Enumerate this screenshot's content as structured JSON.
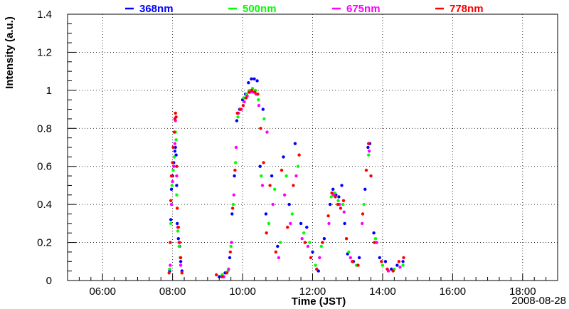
{
  "chart_data": {
    "type": "scatter",
    "xlabel": "Time (JST)",
    "ylabel": "Intensity (a.u.)",
    "date_label": "2008-08-28",
    "xlim": [
      "05:00",
      "19:00"
    ],
    "ylim": [
      0,
      1.4
    ],
    "x_ticks": [
      "06:00",
      "08:00",
      "10:00",
      "12:00",
      "14:00",
      "16:00",
      "18:00"
    ],
    "y_ticks": [
      "0",
      "0.2",
      "0.4",
      "0.6",
      "0.8",
      "1",
      "1.2",
      "1.4"
    ],
    "grid": true,
    "legend_position": "top",
    "series": [
      {
        "name": "368nm",
        "color": "#0000ff",
        "points": [
          [
            "07:55",
            0.05
          ],
          [
            "07:57",
            0.32
          ],
          [
            "07:58",
            0.48
          ],
          [
            "08:00",
            0.55
          ],
          [
            "08:02",
            0.62
          ],
          [
            "08:04",
            0.68
          ],
          [
            "08:05",
            0.7
          ],
          [
            "08:06",
            0.66
          ],
          [
            "08:07",
            0.5
          ],
          [
            "08:08",
            0.3
          ],
          [
            "08:10",
            0.22
          ],
          [
            "08:12",
            0.18
          ],
          [
            "08:14",
            0.1
          ],
          [
            "08:16",
            0.05
          ],
          [
            "09:20",
            0.02
          ],
          [
            "09:30",
            0.04
          ],
          [
            "09:38",
            0.12
          ],
          [
            "09:42",
            0.35
          ],
          [
            "09:46",
            0.55
          ],
          [
            "09:50",
            0.84
          ],
          [
            "09:55",
            0.9
          ],
          [
            "10:00",
            0.95
          ],
          [
            "10:05",
            0.98
          ],
          [
            "10:10",
            1.04
          ],
          [
            "10:15",
            1.06
          ],
          [
            "10:20",
            1.06
          ],
          [
            "10:25",
            1.05
          ],
          [
            "10:30",
            0.6
          ],
          [
            "10:35",
            0.9
          ],
          [
            "10:40",
            0.35
          ],
          [
            "10:50",
            0.55
          ],
          [
            "11:00",
            0.18
          ],
          [
            "11:10",
            0.65
          ],
          [
            "11:20",
            0.4
          ],
          [
            "11:30",
            0.72
          ],
          [
            "11:40",
            0.3
          ],
          [
            "11:50",
            0.28
          ],
          [
            "12:00",
            0.15
          ],
          [
            "12:10",
            0.05
          ],
          [
            "12:20",
            0.22
          ],
          [
            "12:30",
            0.4
          ],
          [
            "12:35",
            0.48
          ],
          [
            "12:40",
            0.45
          ],
          [
            "12:45",
            0.44
          ],
          [
            "12:50",
            0.5
          ],
          [
            "12:55",
            0.3
          ],
          [
            "13:00",
            0.14
          ],
          [
            "13:10",
            0.1
          ],
          [
            "13:20",
            0.12
          ],
          [
            "13:30",
            0.48
          ],
          [
            "13:35",
            0.7
          ],
          [
            "13:38",
            0.72
          ],
          [
            "13:45",
            0.25
          ],
          [
            "13:55",
            0.12
          ],
          [
            "14:05",
            0.1
          ],
          [
            "14:15",
            0.06
          ],
          [
            "14:25",
            0.08
          ],
          [
            "14:35",
            0.1
          ]
        ]
      },
      {
        "name": "500nm",
        "color": "#00ff00",
        "points": [
          [
            "07:55",
            0.06
          ],
          [
            "07:57",
            0.3
          ],
          [
            "07:59",
            0.5
          ],
          [
            "08:01",
            0.58
          ],
          [
            "08:03",
            0.65
          ],
          [
            "08:05",
            0.78
          ],
          [
            "08:06",
            0.74
          ],
          [
            "08:07",
            0.45
          ],
          [
            "08:09",
            0.26
          ],
          [
            "08:11",
            0.18
          ],
          [
            "08:13",
            0.12
          ],
          [
            "08:16",
            0.04
          ],
          [
            "09:25",
            0.03
          ],
          [
            "09:35",
            0.05
          ],
          [
            "09:40",
            0.18
          ],
          [
            "09:44",
            0.4
          ],
          [
            "09:48",
            0.62
          ],
          [
            "09:52",
            0.86
          ],
          [
            "09:57",
            0.9
          ],
          [
            "10:02",
            0.96
          ],
          [
            "10:07",
            0.98
          ],
          [
            "10:12",
            1.0
          ],
          [
            "10:17",
            1.01
          ],
          [
            "10:22",
            1.0
          ],
          [
            "10:27",
            0.95
          ],
          [
            "10:32",
            0.55
          ],
          [
            "10:37",
            0.85
          ],
          [
            "10:45",
            0.3
          ],
          [
            "10:55",
            0.48
          ],
          [
            "11:05",
            0.2
          ],
          [
            "11:15",
            0.55
          ],
          [
            "11:25",
            0.35
          ],
          [
            "11:35",
            0.6
          ],
          [
            "11:45",
            0.25
          ],
          [
            "11:55",
            0.2
          ],
          [
            "12:05",
            0.08
          ],
          [
            "12:15",
            0.18
          ],
          [
            "12:32",
            0.44
          ],
          [
            "12:38",
            0.46
          ],
          [
            "12:44",
            0.42
          ],
          [
            "12:52",
            0.4
          ],
          [
            "13:02",
            0.15
          ],
          [
            "13:15",
            0.08
          ],
          [
            "13:28",
            0.4
          ],
          [
            "13:36",
            0.66
          ],
          [
            "13:48",
            0.22
          ],
          [
            "14:00",
            0.08
          ],
          [
            "14:20",
            0.06
          ],
          [
            "14:35",
            0.08
          ]
        ]
      },
      {
        "name": "675nm",
        "color": "#ff00ff",
        "points": [
          [
            "07:56",
            0.08
          ],
          [
            "07:58",
            0.4
          ],
          [
            "08:00",
            0.52
          ],
          [
            "08:02",
            0.6
          ],
          [
            "08:04",
            0.72
          ],
          [
            "08:05",
            0.84
          ],
          [
            "08:07",
            0.55
          ],
          [
            "08:09",
            0.28
          ],
          [
            "08:11",
            0.2
          ],
          [
            "08:14",
            0.08
          ],
          [
            "09:28",
            0.02
          ],
          [
            "09:36",
            0.06
          ],
          [
            "09:41",
            0.2
          ],
          [
            "09:45",
            0.45
          ],
          [
            "09:49",
            0.7
          ],
          [
            "09:53",
            0.88
          ],
          [
            "09:58",
            0.9
          ],
          [
            "10:03",
            0.94
          ],
          [
            "10:08",
            0.97
          ],
          [
            "10:13",
            0.99
          ],
          [
            "10:18",
            0.99
          ],
          [
            "10:23",
            0.98
          ],
          [
            "10:28",
            0.92
          ],
          [
            "10:34",
            0.5
          ],
          [
            "10:42",
            0.78
          ],
          [
            "10:52",
            0.4
          ],
          [
            "11:02",
            0.12
          ],
          [
            "11:12",
            0.45
          ],
          [
            "11:22",
            0.3
          ],
          [
            "11:32",
            0.55
          ],
          [
            "11:42",
            0.22
          ],
          [
            "11:52",
            0.18
          ],
          [
            "12:12",
            0.12
          ],
          [
            "12:28",
            0.3
          ],
          [
            "12:36",
            0.45
          ],
          [
            "12:46",
            0.4
          ],
          [
            "12:54",
            0.36
          ],
          [
            "13:05",
            0.12
          ],
          [
            "13:25",
            0.3
          ],
          [
            "13:37",
            0.68
          ],
          [
            "13:50",
            0.2
          ],
          [
            "14:10",
            0.05
          ],
          [
            "14:30",
            0.07
          ]
        ]
      },
      {
        "name": "778nm",
        "color": "#ff0000",
        "points": [
          [
            "07:54",
            0.04
          ],
          [
            "07:56",
            0.2
          ],
          [
            "07:57",
            0.42
          ],
          [
            "07:58",
            0.55
          ],
          [
            "08:00",
            0.62
          ],
          [
            "08:01",
            0.7
          ],
          [
            "08:03",
            0.78
          ],
          [
            "08:04",
            0.85
          ],
          [
            "08:05",
            0.88
          ],
          [
            "08:06",
            0.86
          ],
          [
            "08:07",
            0.6
          ],
          [
            "08:08",
            0.38
          ],
          [
            "08:10",
            0.28
          ],
          [
            "08:12",
            0.2
          ],
          [
            "08:14",
            0.12
          ],
          [
            "08:16",
            0.04
          ],
          [
            "09:15",
            0.03
          ],
          [
            "09:25",
            0.02
          ],
          [
            "09:33",
            0.04
          ],
          [
            "09:39",
            0.15
          ],
          [
            "09:43",
            0.38
          ],
          [
            "09:47",
            0.58
          ],
          [
            "09:51",
            0.88
          ],
          [
            "09:56",
            0.9
          ],
          [
            "10:01",
            0.92
          ],
          [
            "10:06",
            0.96
          ],
          [
            "10:11",
            0.99
          ],
          [
            "10:16",
            1.0
          ],
          [
            "10:21",
            0.99
          ],
          [
            "10:26",
            0.98
          ],
          [
            "10:31",
            0.8
          ],
          [
            "10:36",
            0.62
          ],
          [
            "10:41",
            0.25
          ],
          [
            "10:47",
            0.5
          ],
          [
            "10:57",
            0.15
          ],
          [
            "11:07",
            0.58
          ],
          [
            "11:17",
            0.28
          ],
          [
            "11:27",
            0.5
          ],
          [
            "11:37",
            0.66
          ],
          [
            "11:47",
            0.2
          ],
          [
            "11:57",
            0.12
          ],
          [
            "12:07",
            0.06
          ],
          [
            "12:17",
            0.2
          ],
          [
            "12:27",
            0.34
          ],
          [
            "12:33",
            0.46
          ],
          [
            "12:39",
            0.44
          ],
          [
            "12:43",
            0.4
          ],
          [
            "12:48",
            0.38
          ],
          [
            "12:53",
            0.42
          ],
          [
            "12:58",
            0.22
          ],
          [
            "13:08",
            0.1
          ],
          [
            "13:18",
            0.08
          ],
          [
            "13:26",
            0.35
          ],
          [
            "13:32",
            0.58
          ],
          [
            "13:36",
            0.72
          ],
          [
            "13:40",
            0.55
          ],
          [
            "13:46",
            0.2
          ],
          [
            "13:58",
            0.1
          ],
          [
            "14:08",
            0.06
          ],
          [
            "14:18",
            0.05
          ],
          [
            "14:28",
            0.1
          ],
          [
            "14:36",
            0.12
          ]
        ]
      }
    ]
  }
}
